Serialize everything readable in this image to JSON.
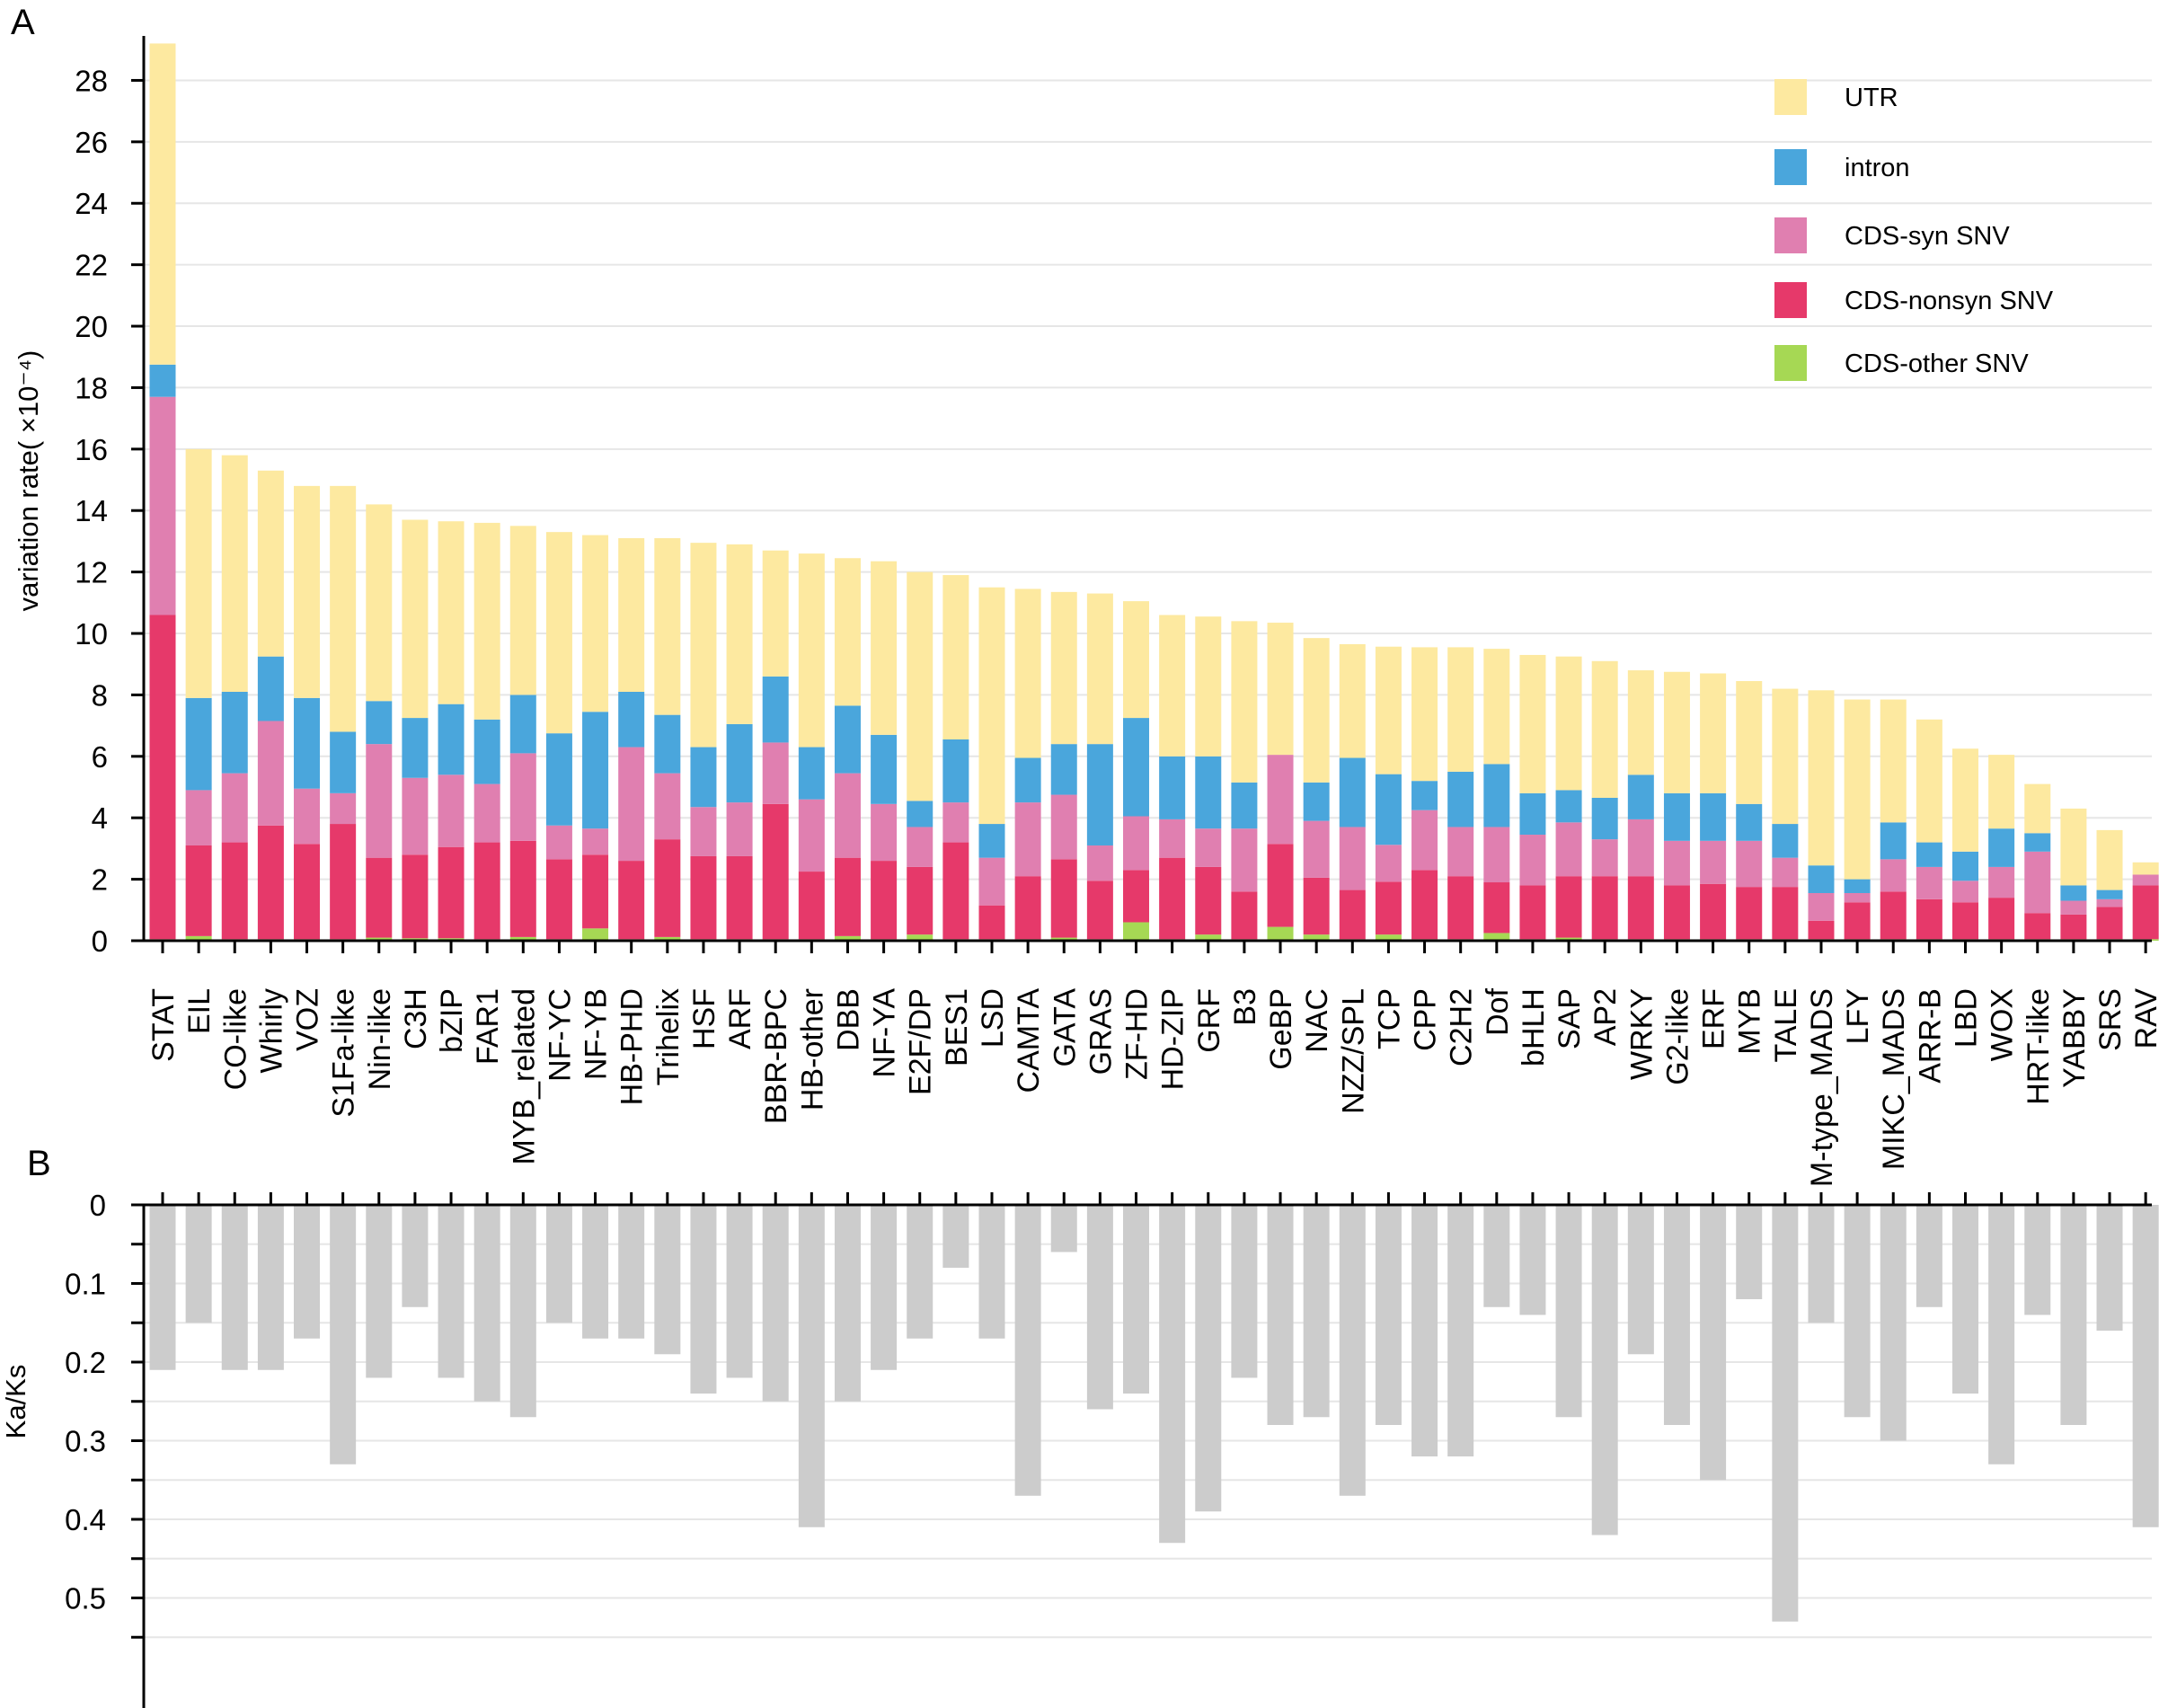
{
  "chart_data": [
    {
      "panel": "A",
      "type": "bar",
      "stacked": true,
      "ylabel": "variation rate( ×10⁻⁴)",
      "ylim": [
        0,
        29.3
      ],
      "yticks": [
        "0",
        "2",
        "4",
        "6",
        "8",
        "10",
        "12",
        "14",
        "16",
        "18",
        "20",
        "22",
        "24",
        "26",
        "28"
      ],
      "grid": true,
      "legend_position": "top-right",
      "categories": [
        "STAT",
        "EIL",
        "CO-like",
        "Whirly",
        "VOZ",
        "S1Fa-like",
        "Nin-like",
        "C3H",
        "bZIP",
        "FAR1",
        "MYB_related",
        "NF-YC",
        "NF-YB",
        "HB-PHD",
        "Trihelix",
        "HSF",
        "ARF",
        "BBR-BPC",
        "HB-other",
        "DBB",
        "NF-YA",
        "E2F/DP",
        "BES1",
        "LSD",
        "CAMTA",
        "GATA",
        "GRAS",
        "ZF-HD",
        "HD-ZIP",
        "GRF",
        "B3",
        "GeBP",
        "NAC",
        "NZZ/SPL",
        "TCP",
        "CPP",
        "C2H2",
        "Dof",
        "bHLH",
        "SAP",
        "AP2",
        "WRKY",
        "G2-like",
        "ERF",
        "MYB",
        "TALE",
        "M-type_MADS",
        "LFY",
        "MIKC_MADS",
        "ARR-B",
        "LBD",
        "WOX",
        "HRT-like",
        "YABBY",
        "SRS",
        "RAV"
      ],
      "series": [
        {
          "name": "CDS-other SNV",
          "color": "#a6d854",
          "values": [
            0.05,
            0.15,
            0.05,
            0.05,
            0.05,
            0.05,
            0.1,
            0.08,
            0.08,
            0.05,
            0.12,
            0.05,
            0.4,
            0.05,
            0.12,
            0.05,
            0.05,
            0.05,
            0.05,
            0.15,
            0.05,
            0.2,
            0.05,
            0.05,
            0.05,
            0.1,
            0.05,
            0.6,
            0.05,
            0.2,
            0.05,
            0.45,
            0.2,
            0.05,
            0.2,
            0.05,
            0.05,
            0.25,
            0.05,
            0.1,
            0.05,
            0.05,
            0.05,
            0.05,
            0.05,
            0.05,
            0.05,
            0.05,
            0.05,
            0.05,
            0.05,
            0.05,
            0.05,
            0.05,
            0.05,
            0.05
          ]
        },
        {
          "name": "CDS-nonsyn SNV",
          "color": "#e6396a",
          "values": [
            10.55,
            2.95,
            3.15,
            3.7,
            3.1,
            3.75,
            2.6,
            2.72,
            2.97,
            3.15,
            3.13,
            2.6,
            2.4,
            2.55,
            3.18,
            2.7,
            2.7,
            4.4,
            2.2,
            2.55,
            2.55,
            2.2,
            3.15,
            1.1,
            2.05,
            2.55,
            1.9,
            1.7,
            2.65,
            2.2,
            1.55,
            2.7,
            1.85,
            1.6,
            1.72,
            2.25,
            2.05,
            1.65,
            1.75,
            2.0,
            2.05,
            2.05,
            1.75,
            1.8,
            1.7,
            1.7,
            0.6,
            1.2,
            1.55,
            1.3,
            1.2,
            1.35,
            0.85,
            0.8,
            1.05,
            1.75
          ]
        },
        {
          "name": "CDS-syn SNV",
          "color": "#e07fb0",
          "values": [
            7.1,
            1.8,
            2.25,
            3.4,
            1.8,
            1.0,
            3.7,
            2.5,
            2.35,
            1.9,
            2.85,
            1.1,
            0.85,
            3.7,
            2.15,
            1.6,
            1.75,
            2.0,
            2.35,
            2.75,
            1.85,
            1.3,
            1.3,
            1.55,
            2.4,
            2.1,
            1.15,
            1.75,
            1.25,
            1.25,
            2.05,
            2.9,
            1.85,
            2.05,
            1.2,
            1.95,
            1.6,
            1.8,
            1.65,
            1.75,
            1.2,
            1.85,
            1.45,
            1.4,
            1.5,
            0.95,
            0.9,
            0.3,
            1.05,
            1.05,
            0.7,
            1.0,
            2.0,
            0.45,
            0.25,
            0.35
          ]
        },
        {
          "name": "intron",
          "color": "#4aa6dc",
          "values": [
            1.05,
            3.0,
            2.65,
            2.1,
            2.95,
            2.0,
            1.4,
            1.95,
            2.3,
            2.1,
            1.9,
            3.0,
            3.8,
            1.8,
            1.9,
            1.95,
            2.55,
            2.15,
            1.7,
            2.2,
            2.25,
            0.85,
            2.05,
            1.1,
            1.45,
            1.65,
            3.3,
            3.2,
            2.05,
            2.35,
            1.5,
            0.0,
            1.25,
            2.25,
            2.3,
            0.95,
            1.8,
            2.05,
            1.35,
            1.05,
            1.35,
            1.45,
            1.55,
            1.55,
            1.2,
            1.1,
            0.9,
            0.45,
            1.2,
            0.8,
            0.95,
            1.25,
            0.6,
            0.5,
            0.3,
            0.0
          ]
        },
        {
          "name": "UTR",
          "color": "#fde9a0",
          "values": [
            10.45,
            8.1,
            7.7,
            6.05,
            6.9,
            8.0,
            6.4,
            6.45,
            5.95,
            6.4,
            5.5,
            6.55,
            5.75,
            5.0,
            5.75,
            6.65,
            5.85,
            4.1,
            6.3,
            4.8,
            5.65,
            7.45,
            5.35,
            7.7,
            5.5,
            4.95,
            4.9,
            3.8,
            4.6,
            4.55,
            5.25,
            4.3,
            4.7,
            3.7,
            4.15,
            4.35,
            4.05,
            3.75,
            4.5,
            4.35,
            4.45,
            3.4,
            3.95,
            3.9,
            4.0,
            4.4,
            5.7,
            5.85,
            4.0,
            4.0,
            3.35,
            2.4,
            1.6,
            2.5,
            1.95,
            0.4
          ]
        }
      ]
    },
    {
      "panel": "B",
      "type": "bar",
      "ylabel": "Ka/Ks",
      "inverted_y": true,
      "ylim": [
        0,
        0.6
      ],
      "yticks": [
        "0",
        "0.1",
        "0.2",
        "0.3",
        "0.4",
        "0.5"
      ],
      "grid": true,
      "categories": [
        "STAT",
        "EIL",
        "CO-like",
        "Whirly",
        "VOZ",
        "S1Fa-like",
        "Nin-like",
        "C3H",
        "bZIP",
        "FAR1",
        "MYB_related",
        "NF-YC",
        "NF-YB",
        "HB-PHD",
        "Trihelix",
        "HSF",
        "ARF",
        "BBR-BPC",
        "HB-other",
        "DBB",
        "NF-YA",
        "E2F/DP",
        "BES1",
        "LSD",
        "CAMTA",
        "GATA",
        "GRAS",
        "ZF-HD",
        "HD-ZIP",
        "GRF",
        "B3",
        "GeBP",
        "NAC",
        "NZZ/SPL",
        "TCP",
        "CPP",
        "C2H2",
        "Dof",
        "bHLH",
        "SAP",
        "AP2",
        "WRKY",
        "G2-like",
        "ERF",
        "MYB",
        "TALE",
        "M-type_MADS",
        "LFY",
        "MIKC_MADS",
        "ARR-B",
        "LBD",
        "WOX",
        "HRT-like",
        "YABBY",
        "SRS",
        "RAV"
      ],
      "color": "#cccccc",
      "values": [
        0.21,
        0.15,
        0.21,
        0.21,
        0.17,
        0.33,
        0.22,
        0.13,
        0.22,
        0.25,
        0.27,
        0.15,
        0.17,
        0.17,
        0.19,
        0.24,
        0.22,
        0.25,
        0.41,
        0.25,
        0.21,
        0.17,
        0.08,
        0.17,
        0.37,
        0.06,
        0.26,
        0.24,
        0.43,
        0.39,
        0.22,
        0.28,
        0.27,
        0.37,
        0.28,
        0.32,
        0.32,
        0.13,
        0.14,
        0.27,
        0.42,
        0.19,
        0.28,
        0.35,
        0.12,
        0.53,
        0.15,
        0.27,
        0.3,
        0.13,
        0.24,
        0.33,
        0.14,
        0.28,
        0.16,
        0.41
      ]
    }
  ],
  "panels": {
    "a_letter": "A",
    "b_letter": "B"
  }
}
